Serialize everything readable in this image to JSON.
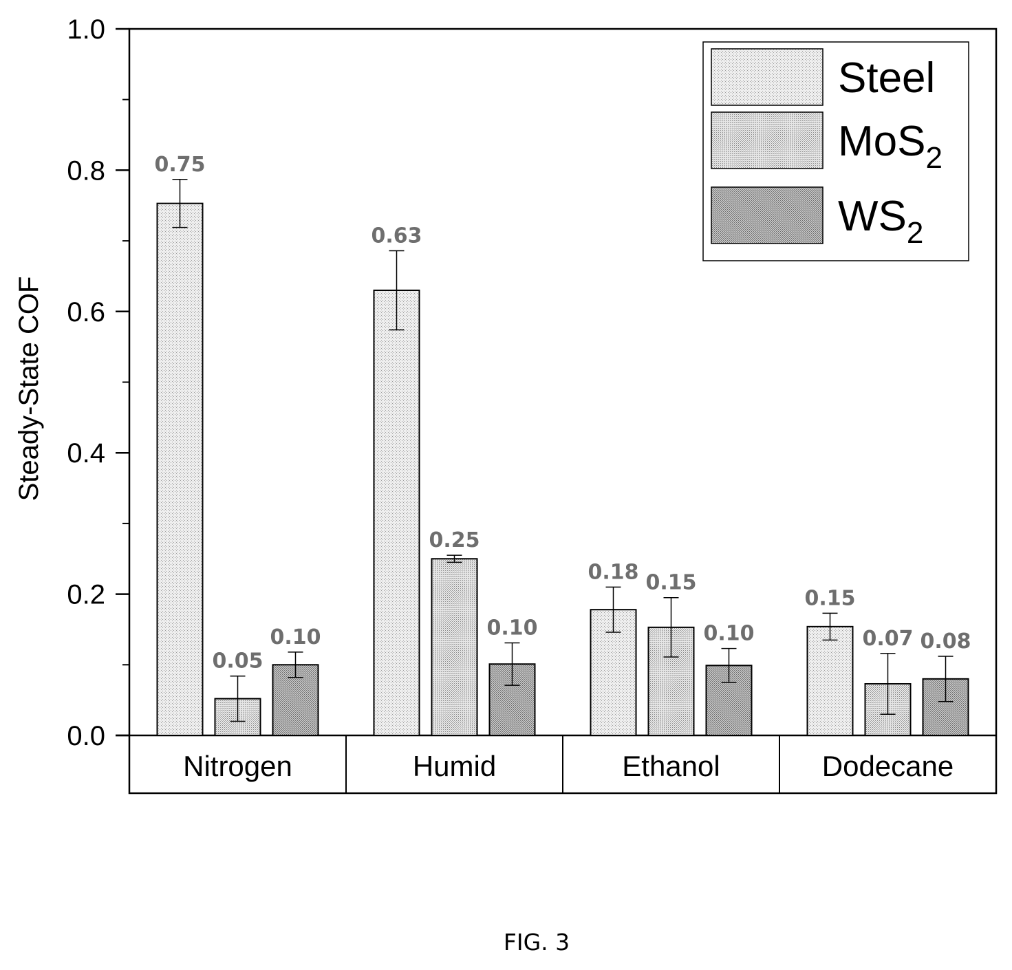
{
  "chart_data": {
    "type": "bar",
    "ylabel": "Steady-State COF",
    "ylim": [
      0.0,
      1.0
    ],
    "yticks": [
      "0.0",
      "0.2",
      "0.4",
      "0.6",
      "0.8",
      "1.0"
    ],
    "categories": [
      "Nitrogen",
      "Humid",
      "Ethanol",
      "Dodecane"
    ],
    "series": [
      {
        "name": "Steel",
        "name_sub": "",
        "values": [
          0.753,
          0.63,
          0.178,
          0.154
        ],
        "errors": [
          0.034,
          0.056,
          0.032,
          0.019
        ],
        "labels": [
          "0.75",
          "0.63",
          "0.18",
          "0.15"
        ],
        "fill": "#e4e4e4"
      },
      {
        "name": "MoS",
        "name_sub": "2",
        "values": [
          0.052,
          0.25,
          0.153,
          0.073
        ],
        "errors": [
          0.032,
          0.005,
          0.042,
          0.043
        ],
        "labels": [
          "0.05",
          "0.25",
          "0.15",
          "0.07"
        ],
        "fill": "#d2d2d2"
      },
      {
        "name": "WS",
        "name_sub": "2",
        "values": [
          0.1,
          0.101,
          0.099,
          0.08
        ],
        "errors": [
          0.018,
          0.03,
          0.024,
          0.032
        ],
        "labels": [
          "0.10",
          "0.10",
          "0.10",
          "0.08"
        ],
        "fill": "#a9a9a9"
      }
    ],
    "legend_position": "top-right",
    "grid": false
  },
  "caption": "FIG. 3"
}
